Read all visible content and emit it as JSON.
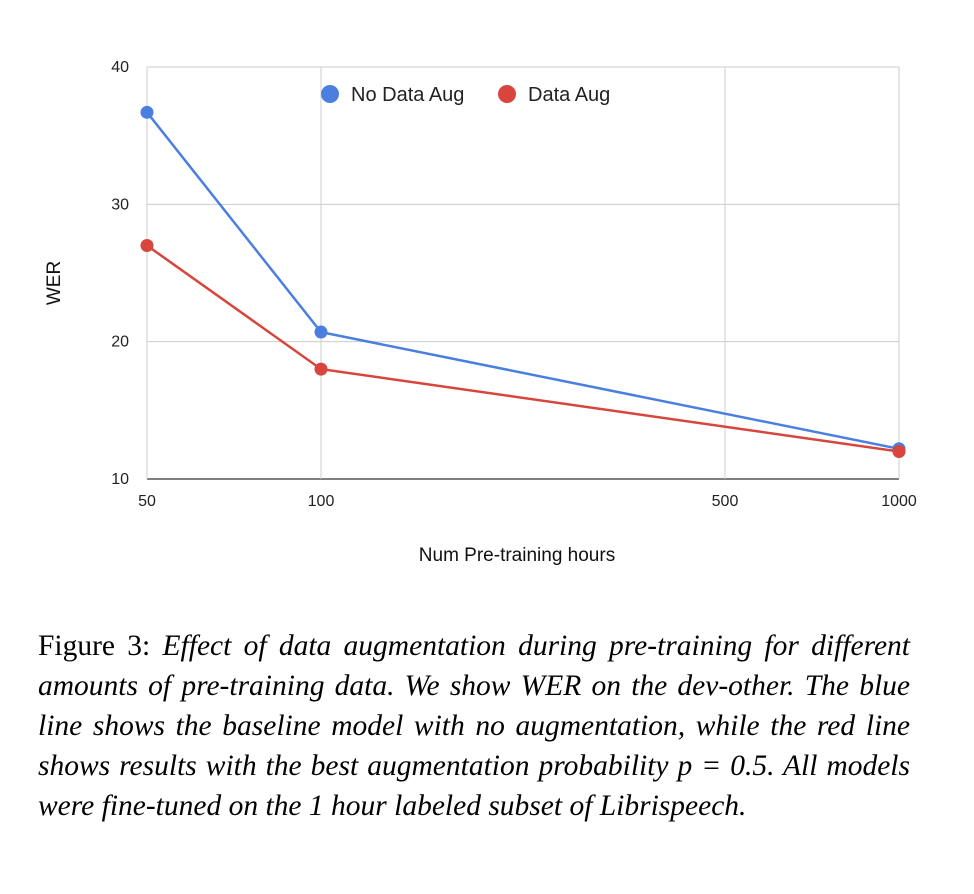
{
  "chart_data": {
    "type": "line",
    "title": "",
    "xlabel": "Num Pre-training hours",
    "ylabel": "WER",
    "x_scale": "log",
    "x_ticks": [
      50,
      100,
      500,
      1000
    ],
    "x_tick_labels": [
      "50",
      "100",
      "500",
      "1000"
    ],
    "y_ticks": [
      10,
      20,
      30,
      40
    ],
    "y_tick_labels": [
      "10",
      "20",
      "30",
      "40"
    ],
    "xlim": [
      50,
      1000
    ],
    "ylim": [
      10,
      40
    ],
    "grid": true,
    "legend_position": "top-center",
    "x": [
      50,
      100,
      1000
    ],
    "series": [
      {
        "name": "No Data Aug",
        "color": "#4a7fe0",
        "values": [
          36.7,
          20.7,
          12.2
        ]
      },
      {
        "name": "Data Aug",
        "color": "#d8453c",
        "values": [
          27.0,
          18.0,
          12.0
        ]
      }
    ]
  },
  "caption": {
    "label": "Figure 3:",
    "text": "Effect of data augmentation during pre-training for different amounts of pre-training data. We show WER on the dev-other. The blue line shows the baseline model with no augmentation, while the red line shows results with the best augmentation probability p = 0.5. All models were fine-tuned on the 1 hour labeled subset of Librispeech."
  }
}
